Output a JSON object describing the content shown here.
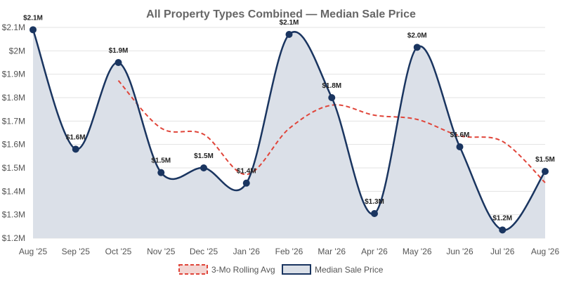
{
  "chart_data": {
    "type": "line",
    "title": "All Property Types Combined — Median Sale Price",
    "xlabel": "",
    "ylabel": "",
    "categories": [
      "Aug '25",
      "Sep '25",
      "Oct '25",
      "Nov '25",
      "Dec '25",
      "Jan '26",
      "Feb '26",
      "Mar '26",
      "Apr '26",
      "May '26",
      "Jun '26",
      "Jul '26",
      "Aug '26"
    ],
    "ylim": [
      1.2,
      2.1
    ],
    "y_ticks": [
      1.2,
      1.3,
      1.4,
      1.5,
      1.6,
      1.7,
      1.8,
      1.9,
      2.0,
      2.1
    ],
    "y_tick_labels": [
      "$1.2M",
      "$1.3M",
      "$1.4M",
      "$1.5M",
      "$1.6M",
      "$1.7M",
      "$1.8M",
      "$1.9M",
      "$2M",
      "$2.1M"
    ],
    "grid": true,
    "legend_position": "bottom",
    "series": [
      {
        "name": "Median Sale Price",
        "style": "solid-area",
        "color": "#1a3560",
        "fill": "#dbe0e8",
        "values": [
          2.09,
          1.58,
          1.95,
          1.48,
          1.5,
          1.435,
          2.07,
          1.8,
          1.305,
          2.015,
          1.59,
          1.235,
          1.485
        ],
        "labels": [
          "$2.1M",
          "$1.6M",
          "$1.9M",
          "$1.5M",
          "$1.5M",
          "$1.4M",
          "$2.1M",
          "$1.8M",
          "$1.3M",
          "$2.0M",
          "$1.6M",
          "$1.2M",
          "$1.5M"
        ]
      },
      {
        "name": "3-Mo Rolling Avg",
        "style": "dashed",
        "color": "#e0453a",
        "values": [
          null,
          null,
          1.873,
          1.67,
          1.643,
          1.472,
          1.668,
          1.768,
          1.725,
          1.707,
          1.637,
          1.613,
          1.437
        ]
      }
    ]
  }
}
